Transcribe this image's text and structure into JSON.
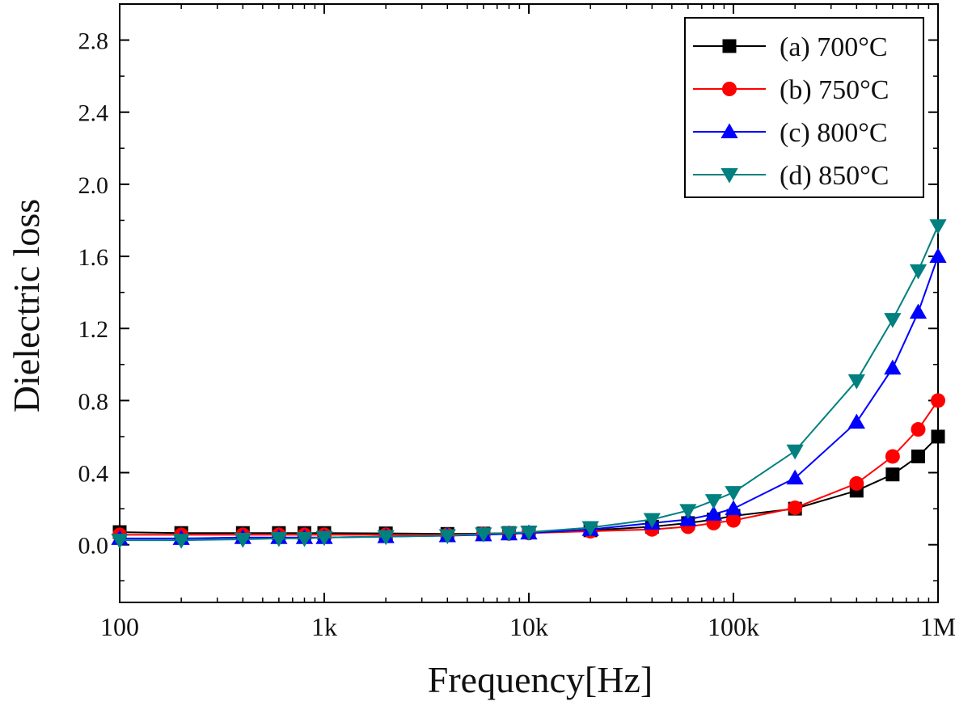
{
  "chart_data": {
    "type": "line",
    "xlabel": "Frequency[Hz]",
    "ylabel": "Dielectric loss",
    "xscale": "log",
    "xlim": [
      100,
      1000000
    ],
    "ylim": [
      -0.32,
      3.0
    ],
    "xticks": [
      {
        "value": 100,
        "label": "100"
      },
      {
        "value": 1000,
        "label": "1k"
      },
      {
        "value": 10000,
        "label": "10k"
      },
      {
        "value": 100000,
        "label": "100k"
      },
      {
        "value": 1000000,
        "label": "1M"
      }
    ],
    "yticks": [
      {
        "value": 0.0,
        "label": "0.0"
      },
      {
        "value": 0.4,
        "label": "0.4"
      },
      {
        "value": 0.8,
        "label": "0.8"
      },
      {
        "value": 1.2,
        "label": "1.2"
      },
      {
        "value": 1.6,
        "label": "1.6"
      },
      {
        "value": 2.0,
        "label": "2.0"
      },
      {
        "value": 2.4,
        "label": "2.4"
      },
      {
        "value": 2.8,
        "label": "2.8"
      }
    ],
    "grid": false,
    "legend_position": "top-right",
    "x": [
      100,
      200,
      400,
      600,
      800,
      1000,
      2000,
      4000,
      6000,
      8000,
      10000,
      20000,
      40000,
      60000,
      80000,
      100000,
      200000,
      400000,
      600000,
      800000,
      1000000
    ],
    "series": [
      {
        "name": "(a) 700°C",
        "color": "#000000",
        "marker": "square",
        "values": [
          0.07,
          0.065,
          0.065,
          0.065,
          0.065,
          0.065,
          0.063,
          0.06,
          0.062,
          0.065,
          0.068,
          0.08,
          0.1,
          0.12,
          0.14,
          0.16,
          0.2,
          0.3,
          0.39,
          0.49,
          0.6
        ]
      },
      {
        "name": "(b) 750°C",
        "color": "#ff0000",
        "marker": "circle",
        "values": [
          0.055,
          0.055,
          0.055,
          0.055,
          0.055,
          0.055,
          0.055,
          0.055,
          0.06,
          0.063,
          0.065,
          0.075,
          0.085,
          0.1,
          0.12,
          0.135,
          0.205,
          0.34,
          0.49,
          0.64,
          0.8
        ]
      },
      {
        "name": "(c) 800°C",
        "color": "#0000ff",
        "marker": "triangle-up",
        "values": [
          0.035,
          0.035,
          0.04,
          0.04,
          0.04,
          0.04,
          0.045,
          0.05,
          0.055,
          0.06,
          0.065,
          0.085,
          0.12,
          0.14,
          0.17,
          0.2,
          0.37,
          0.68,
          0.98,
          1.29,
          1.6
        ]
      },
      {
        "name": "(d) 850°C",
        "color": "#00807f",
        "marker": "triangle-down",
        "values": [
          0.025,
          0.025,
          0.03,
          0.035,
          0.035,
          0.04,
          0.045,
          0.05,
          0.06,
          0.065,
          0.07,
          0.095,
          0.14,
          0.19,
          0.245,
          0.29,
          0.52,
          0.91,
          1.25,
          1.52,
          1.77
        ]
      }
    ]
  }
}
